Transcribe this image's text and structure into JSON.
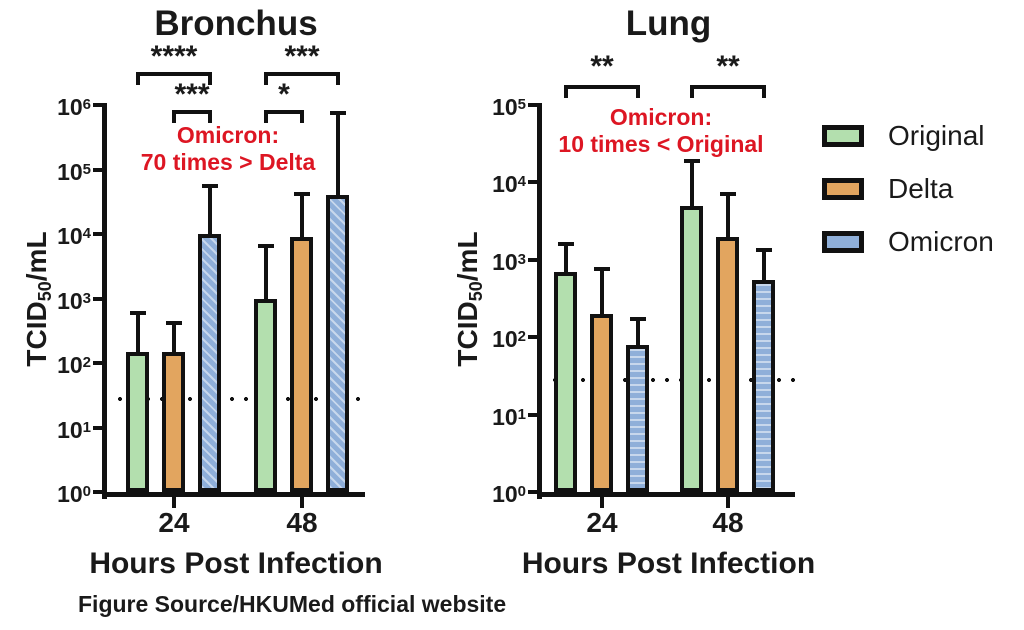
{
  "figure": {
    "source_caption": "Figure Source/HKUMed official website"
  },
  "colors": {
    "axis": "#111111",
    "annotation_red": "#dd1623",
    "original_green": "#b3dfae",
    "delta_orange": "#e2a55f",
    "omicron_blue": "#8fafd9"
  },
  "legend": {
    "items": [
      {
        "label": "Original",
        "color": "#b3dfae"
      },
      {
        "label": "Delta",
        "color": "#e2a55f"
      },
      {
        "label": "Omicron",
        "color": "#8fafd9"
      }
    ]
  },
  "chart_data": [
    {
      "type": "bar",
      "title": "Bronchus",
      "xlabel": "Hours Post Infection",
      "ylabel": "TCID50/mL",
      "ylabel_parts": {
        "text": "TCID",
        "sub": "50",
        "suffix": "/mL"
      },
      "yscale": "log",
      "ylim": [
        1,
        1000000
      ],
      "ytick_exponents": [
        0,
        1,
        2,
        3,
        4,
        5,
        6
      ],
      "categories": [
        "24",
        "48"
      ],
      "series": [
        {
          "name": "Original",
          "color": "#b3dfae",
          "values": [
            150,
            1000
          ],
          "error_high": [
            650,
            7000
          ]
        },
        {
          "name": "Delta",
          "color": "#e2a55f",
          "values": [
            150,
            9000
          ],
          "error_high": [
            450,
            45000
          ]
        },
        {
          "name": "Omicron",
          "color": "#8fafd9",
          "values": [
            10000,
            40000
          ],
          "error_high": [
            60000,
            800000
          ]
        }
      ],
      "detection_limit": 28,
      "annotation": {
        "lines": [
          "Omicron:",
          "70 times > Delta"
        ],
        "color": "#dd1623"
      },
      "significance": [
        {
          "category": "24",
          "from": "Original",
          "to": "Omicron",
          "label": "****",
          "tier": "upper"
        },
        {
          "category": "24",
          "from": "Delta",
          "to": "Omicron",
          "label": "***",
          "tier": "lower"
        },
        {
          "category": "48",
          "from": "Original",
          "to": "Omicron",
          "label": "***",
          "tier": "upper"
        },
        {
          "category": "48",
          "from": "Original",
          "to": "Delta",
          "label": "*",
          "tier": "lower"
        }
      ]
    },
    {
      "type": "bar",
      "title": "Lung",
      "xlabel": "Hours Post Infection",
      "ylabel": "TCID50/mL",
      "ylabel_parts": {
        "text": "TCID",
        "sub": "50",
        "suffix": "/mL"
      },
      "yscale": "log",
      "ylim": [
        1,
        100000
      ],
      "ytick_exponents": [
        0,
        1,
        2,
        3,
        4,
        5
      ],
      "categories": [
        "24",
        "48"
      ],
      "series": [
        {
          "name": "Original",
          "color": "#b3dfae",
          "values": [
            700,
            5000
          ],
          "error_high": [
            1700,
            20000
          ]
        },
        {
          "name": "Delta",
          "color": "#e2a55f",
          "values": [
            200,
            2000
          ],
          "error_high": [
            800,
            7500
          ]
        },
        {
          "name": "Omicron",
          "color": "#8fafd9",
          "values": [
            80,
            550
          ],
          "error_high": [
            180,
            1400
          ]
        }
      ],
      "detection_limit": 28,
      "annotation": {
        "lines": [
          "Omicron:",
          "10 times < Original"
        ],
        "color": "#dd1623"
      },
      "significance": [
        {
          "category": "24",
          "from": "Original",
          "to": "Omicron",
          "label": "**",
          "tier": "upper"
        },
        {
          "category": "48",
          "from": "Original",
          "to": "Omicron",
          "label": "**",
          "tier": "upper"
        }
      ]
    }
  ]
}
